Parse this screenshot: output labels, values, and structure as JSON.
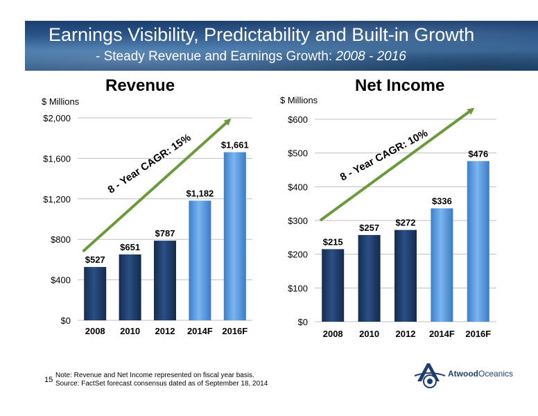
{
  "header": {
    "title": "Earnings Visibility, Predictability and Built-in Growth",
    "subtitle_prefix": "- Steady Revenue and Earnings Growth: ",
    "subtitle_years": "2008 - 2016"
  },
  "chart_data": [
    {
      "type": "bar",
      "title": "Revenue",
      "units": "$ Millions",
      "categories": [
        "2008",
        "2010",
        "2012",
        "2014F",
        "2016F"
      ],
      "values": [
        527,
        651,
        787,
        1182,
        1661
      ],
      "value_labels": [
        "$527",
        "$651",
        "$787",
        "$1,182",
        "$1,661"
      ],
      "ylim": [
        0,
        2000
      ],
      "yticks": [
        0,
        400,
        800,
        1200,
        1600,
        2000
      ],
      "ytick_labels": [
        "$0",
        "$400",
        "$800",
        "$1,200",
        "$1,600",
        "$2,000"
      ],
      "grid": true,
      "bar_colors": [
        "#1f3d6b",
        "#1f3d6b",
        "#1f3d6b",
        "#5b9be0",
        "#5b9be0"
      ],
      "annotation": "8 - Year CAGR: 15%",
      "trend_arrow": {
        "from": [
          2008,
          680
        ],
        "to": [
          2016,
          1980
        ]
      }
    },
    {
      "type": "bar",
      "title": "Net Income",
      "units": "$ Millions",
      "categories": [
        "2008",
        "2010",
        "2012",
        "2014F",
        "2016F"
      ],
      "values": [
        215,
        257,
        272,
        336,
        476
      ],
      "value_labels": [
        "$215",
        "$257",
        "$272",
        "$336",
        "$476"
      ],
      "ylim": [
        0,
        600
      ],
      "yticks": [
        0,
        100,
        200,
        300,
        400,
        500,
        600
      ],
      "ytick_labels": [
        "$0",
        "$100",
        "$200",
        "$300",
        "$400",
        "$500",
        "$600"
      ],
      "grid": true,
      "bar_colors": [
        "#1f3d6b",
        "#1f3d6b",
        "#1f3d6b",
        "#5b9be0",
        "#5b9be0"
      ],
      "annotation": "8 - Year CAGR: 10%",
      "trend_arrow": {
        "from": [
          2008,
          300
        ],
        "to": [
          2016,
          630
        ]
      }
    }
  ],
  "footer": {
    "page_number": "15",
    "note_line1": "Note: Revenue and Net Income represented on fiscal year basis.",
    "note_line2": "Source: FactSet forecast consensus dated as of September 18, 2014",
    "logo_name": "Atwood",
    "logo_name2": "Oceanics"
  },
  "colors": {
    "dark_bar": "#1f3d6b",
    "light_bar": "#5b9be0",
    "arrow": "#6a9a3a"
  }
}
